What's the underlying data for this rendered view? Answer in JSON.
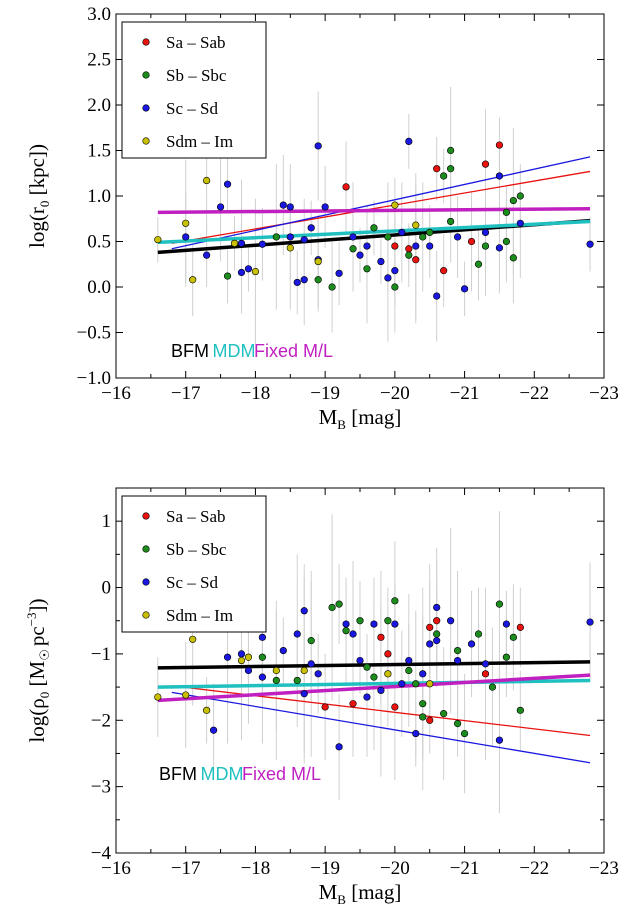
{
  "chart_data": [
    {
      "type": "scatter",
      "xlabel": "M_B [mag]",
      "xlabel_main": "M",
      "xlabel_sub": "B",
      "xlabel_unit": " [mag]",
      "ylabel": "log(r_0 [kpc])",
      "ylabel_pre": "log(r",
      "ylabel_sub": "0",
      "ylabel_post": " [kpc])",
      "xlim": [
        -16,
        -23
      ],
      "ylim": [
        -1.0,
        3.0
      ],
      "xticks": [
        -16,
        -17,
        -18,
        -19,
        -20,
        -21,
        -22,
        -23
      ],
      "xtick_labels": [
        "−16",
        "−17",
        "−18",
        "−19",
        "−20",
        "−21",
        "−22",
        "−23"
      ],
      "yticks": [
        -1.0,
        -0.5,
        0.0,
        0.5,
        1.0,
        1.5,
        2.0,
        2.5,
        3.0
      ],
      "ytick_labels": [
        "−1.0",
        "−0.5",
        "0.0",
        "0.5",
        "1.0",
        "1.5",
        "2.0",
        "2.5",
        "3.0"
      ],
      "legend_position": "top-left",
      "series": [
        {
          "name": "Sa – Sab",
          "color": "#e8120f",
          "points": [
            [
              -19.3,
              1.1
            ],
            [
              -20.6,
              1.3
            ],
            [
              -21.3,
              1.35
            ],
            [
              -21.5,
              1.56
            ],
            [
              -20.0,
              0.45
            ],
            [
              -20.2,
              0.42
            ],
            [
              -20.3,
              0.3
            ],
            [
              -20.7,
              0.18
            ],
            [
              -21.1,
              0.5
            ]
          ]
        },
        {
          "name": "Sb – Sbc",
          "color": "#1c8c1c",
          "points": [
            [
              -17.6,
              0.12
            ],
            [
              -18.3,
              0.55
            ],
            [
              -18.9,
              0.08
            ],
            [
              -19.1,
              0.0
            ],
            [
              -19.4,
              0.42
            ],
            [
              -19.7,
              0.65
            ],
            [
              -19.9,
              0.55
            ],
            [
              -20.0,
              0.0
            ],
            [
              -20.2,
              0.35
            ],
            [
              -20.4,
              0.55
            ],
            [
              -20.7,
              1.22
            ],
            [
              -20.8,
              0.72
            ],
            [
              -20.8,
              1.3
            ],
            [
              -20.8,
              1.5
            ],
            [
              -21.2,
              0.25
            ],
            [
              -21.3,
              0.45
            ],
            [
              -21.6,
              0.82
            ],
            [
              -21.7,
              0.95
            ],
            [
              -21.8,
              1.0
            ],
            [
              -21.7,
              0.32
            ],
            [
              -21.6,
              0.5
            ],
            [
              -20.5,
              0.6
            ],
            [
              -19.6,
              0.2
            ]
          ]
        },
        {
          "name": "Sc – Sd",
          "color": "#1a18e0",
          "points": [
            [
              -17.0,
              0.55
            ],
            [
              -17.3,
              0.35
            ],
            [
              -17.5,
              0.88
            ],
            [
              -17.6,
              1.13
            ],
            [
              -17.8,
              0.16
            ],
            [
              -17.9,
              0.2
            ],
            [
              -17.8,
              0.48
            ],
            [
              -18.1,
              0.47
            ],
            [
              -18.4,
              0.9
            ],
            [
              -18.5,
              0.88
            ],
            [
              -18.5,
              0.55
            ],
            [
              -18.6,
              0.05
            ],
            [
              -18.7,
              0.08
            ],
            [
              -18.7,
              0.52
            ],
            [
              -18.8,
              0.65
            ],
            [
              -18.9,
              1.55
            ],
            [
              -18.9,
              0.3
            ],
            [
              -19.2,
              0.15
            ],
            [
              -19.4,
              0.55
            ],
            [
              -19.5,
              0.35
            ],
            [
              -19.6,
              0.45
            ],
            [
              -19.8,
              0.28
            ],
            [
              -19.9,
              0.1
            ],
            [
              -20.0,
              0.18
            ],
            [
              -20.1,
              0.6
            ],
            [
              -20.2,
              1.6
            ],
            [
              -20.3,
              0.45
            ],
            [
              -20.5,
              0.45
            ],
            [
              -20.6,
              -0.1
            ],
            [
              -20.9,
              0.55
            ],
            [
              -21.0,
              -0.02
            ],
            [
              -21.3,
              0.6
            ],
            [
              -21.5,
              0.43
            ],
            [
              -21.5,
              1.22
            ],
            [
              -21.8,
              0.7
            ],
            [
              -22.8,
              0.47
            ],
            [
              -19.0,
              0.88
            ]
          ]
        },
        {
          "name": "Sdm – Im",
          "color": "#c8c000",
          "points": [
            [
              -16.6,
              0.52
            ],
            [
              -17.0,
              0.7
            ],
            [
              -17.1,
              0.08
            ],
            [
              -17.3,
              1.17
            ],
            [
              -17.7,
              0.48
            ],
            [
              -18.0,
              0.17
            ],
            [
              -18.5,
              0.43
            ],
            [
              -18.9,
              0.28
            ],
            [
              -20.3,
              0.68
            ],
            [
              -20.0,
              0.9
            ]
          ]
        }
      ],
      "fits": [
        {
          "label": "Sa – Sab fit",
          "color": "#e8120f",
          "width": 1.3,
          "x": [
            -16.8,
            -22.8
          ],
          "y": [
            0.48,
            1.27
          ]
        },
        {
          "label": "Sc – Sd fit",
          "color": "#1a18e0",
          "width": 1.3,
          "x": [
            -16.8,
            -22.8
          ],
          "y": [
            0.42,
            1.43
          ]
        },
        {
          "label": "BFM",
          "color": "#000000",
          "width": 3.5,
          "x": [
            -16.6,
            -22.8
          ],
          "y": [
            0.38,
            0.73
          ]
        },
        {
          "label": "MDM",
          "color": "#20c0c0",
          "width": 3.5,
          "x": [
            -16.6,
            -22.8
          ],
          "y": [
            0.49,
            0.72
          ]
        },
        {
          "label": "Fixed M/L",
          "color": "#c020c0",
          "width": 3.5,
          "x": [
            -16.6,
            -22.8
          ],
          "y": [
            0.82,
            0.86
          ]
        }
      ],
      "annotations": [
        {
          "text": "BFM",
          "color": "#000000"
        },
        {
          "text": "MDM",
          "color": "#20c0c0"
        },
        {
          "text": "Fixed M/L",
          "color": "#c020c0"
        }
      ]
    },
    {
      "type": "scatter",
      "xlabel": "M_B [mag]",
      "xlabel_main": "M",
      "xlabel_sub": "B",
      "xlabel_unit": " [mag]",
      "ylabel": "log(ρ_0 [M☉ pc^−3])",
      "ylabel_pre": "log(ρ",
      "ylabel_sub": "0",
      "ylabel_mid": " [M",
      "ylabel_sub2": "☉",
      "ylabel_post": "pc",
      "ylabel_sup": "−3",
      "ylabel_end": "])",
      "xlim": [
        -16,
        -23
      ],
      "ylim": [
        -4,
        1.5
      ],
      "xticks": [
        -16,
        -17,
        -18,
        -19,
        -20,
        -21,
        -22,
        -23
      ],
      "xtick_labels": [
        "−16",
        "−17",
        "−18",
        "−19",
        "−20",
        "−21",
        "−22",
        "−23"
      ],
      "yticks": [
        -4,
        -3,
        -2,
        -1,
        0,
        1
      ],
      "ytick_labels": [
        "−4",
        "−3",
        "−2",
        "−1",
        "0",
        "1"
      ],
      "legend_position": "top-left",
      "series": [
        {
          "name": "Sa – Sab",
          "color": "#e8120f",
          "points": [
            [
              -19.4,
              -1.75
            ],
            [
              -19.9,
              -1.0
            ],
            [
              -20.0,
              -1.8
            ],
            [
              -20.5,
              -2.0
            ],
            [
              -20.6,
              -0.5
            ],
            [
              -20.5,
              -0.6
            ],
            [
              -21.3,
              -1.3
            ],
            [
              -21.8,
              -0.6
            ],
            [
              -19.0,
              -1.8
            ],
            [
              -19.8,
              -0.75
            ]
          ]
        },
        {
          "name": "Sb – Sbc",
          "color": "#1c8c1c",
          "points": [
            [
              -18.1,
              -1.05
            ],
            [
              -18.3,
              -1.4
            ],
            [
              -18.6,
              -1.4
            ],
            [
              -18.8,
              -0.8
            ],
            [
              -19.1,
              -0.3
            ],
            [
              -19.2,
              -0.25
            ],
            [
              -19.3,
              -0.65
            ],
            [
              -19.5,
              -0.5
            ],
            [
              -19.7,
              -1.35
            ],
            [
              -19.9,
              -0.5
            ],
            [
              -20.0,
              -0.2
            ],
            [
              -20.2,
              -1.25
            ],
            [
              -20.4,
              -1.75
            ],
            [
              -20.4,
              -1.95
            ],
            [
              -20.6,
              -0.7
            ],
            [
              -20.7,
              -1.9
            ],
            [
              -20.9,
              -2.05
            ],
            [
              -20.9,
              -0.95
            ],
            [
              -21.2,
              -0.7
            ],
            [
              -21.4,
              -1.5
            ],
            [
              -21.5,
              -0.25
            ],
            [
              -21.6,
              -1.05
            ],
            [
              -21.7,
              -0.75
            ],
            [
              -21.8,
              -1.85
            ],
            [
              -20.3,
              -1.45
            ],
            [
              -19.6,
              -1.2
            ],
            [
              -21.0,
              -2.2
            ]
          ]
        },
        {
          "name": "Sc – Sd",
          "color": "#1a18e0",
          "points": [
            [
              -17.4,
              -2.15
            ],
            [
              -17.6,
              -1.05
            ],
            [
              -17.8,
              -1.0
            ],
            [
              -17.9,
              -1.25
            ],
            [
              -18.1,
              -1.35
            ],
            [
              -18.4,
              -0.95
            ],
            [
              -18.6,
              -0.7
            ],
            [
              -18.7,
              -0.35
            ],
            [
              -18.7,
              -1.6
            ],
            [
              -18.8,
              -1.15
            ],
            [
              -18.9,
              -1.3
            ],
            [
              -19.2,
              -2.4
            ],
            [
              -19.3,
              -0.55
            ],
            [
              -19.4,
              -0.7
            ],
            [
              -19.5,
              -1.1
            ],
            [
              -19.6,
              -1.65
            ],
            [
              -19.7,
              -0.55
            ],
            [
              -19.8,
              -1.55
            ],
            [
              -20.0,
              -0.55
            ],
            [
              -20.1,
              -1.45
            ],
            [
              -20.2,
              -1.1
            ],
            [
              -20.3,
              -2.2
            ],
            [
              -20.5,
              -0.85
            ],
            [
              -20.6,
              -0.8
            ],
            [
              -20.6,
              -0.3
            ],
            [
              -20.8,
              -0.5
            ],
            [
              -20.9,
              -1.1
            ],
            [
              -21.1,
              -0.85
            ],
            [
              -21.3,
              -1.15
            ],
            [
              -21.5,
              -2.3
            ],
            [
              -21.6,
              -0.55
            ],
            [
              -22.8,
              -0.52
            ],
            [
              -18.1,
              -0.75
            ],
            [
              -20.4,
              -1.3
            ]
          ]
        },
        {
          "name": "Sdm – Im",
          "color": "#c8c000",
          "points": [
            [
              -16.6,
              -1.65
            ],
            [
              -17.0,
              -1.62
            ],
            [
              -17.1,
              -0.78
            ],
            [
              -17.3,
              -1.85
            ],
            [
              -17.8,
              -1.1
            ],
            [
              -17.9,
              -1.05
            ],
            [
              -18.3,
              -1.25
            ],
            [
              -18.7,
              -1.25
            ],
            [
              -20.5,
              -1.45
            ],
            [
              -19.9,
              -1.3
            ]
          ]
        }
      ],
      "fits": [
        {
          "label": "Sa – Sab fit",
          "color": "#e8120f",
          "width": 1.3,
          "x": [
            -16.8,
            -22.8
          ],
          "y": [
            -1.48,
            -2.23
          ]
        },
        {
          "label": "Sc – Sd fit",
          "color": "#1a18e0",
          "width": 1.3,
          "x": [
            -16.8,
            -22.8
          ],
          "y": [
            -1.58,
            -2.64
          ]
        },
        {
          "label": "BFM",
          "color": "#000000",
          "width": 3.5,
          "x": [
            -16.6,
            -22.8
          ],
          "y": [
            -1.21,
            -1.12
          ]
        },
        {
          "label": "MDM",
          "color": "#20c0c0",
          "width": 3.5,
          "x": [
            -16.6,
            -22.8
          ],
          "y": [
            -1.5,
            -1.4
          ]
        },
        {
          "label": "Fixed M/L",
          "color": "#c020c0",
          "width": 3.5,
          "x": [
            -16.6,
            -22.8
          ],
          "y": [
            -1.7,
            -1.32
          ]
        }
      ],
      "annotations": [
        {
          "text": "BFM",
          "color": "#000000"
        },
        {
          "text": "MDM",
          "color": "#20c0c0"
        },
        {
          "text": "Fixed M/L",
          "color": "#c020c0"
        }
      ]
    }
  ]
}
